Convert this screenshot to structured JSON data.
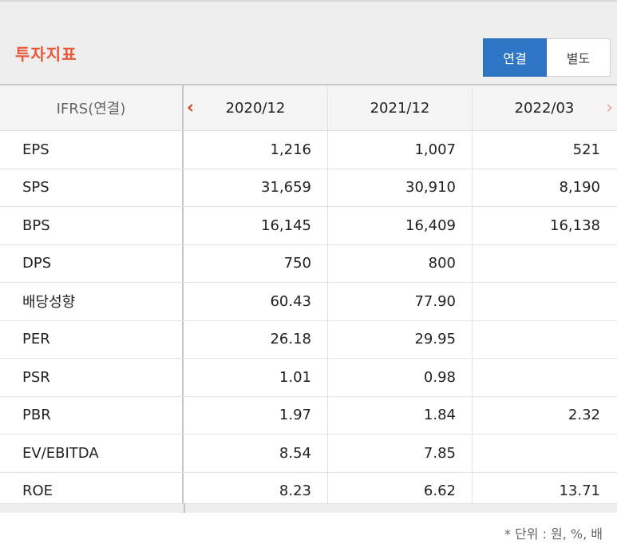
{
  "header": {
    "title": "투자지표",
    "toggle": [
      "연결",
      "별도"
    ]
  },
  "table": {
    "label_header": "IFRS(연결)",
    "periods": [
      "2020/12",
      "2021/12",
      "2022/03"
    ],
    "rows": [
      {
        "label": "EPS",
        "values": [
          "1,216",
          "1,007",
          "521"
        ]
      },
      {
        "label": "SPS",
        "values": [
          "31,659",
          "30,910",
          "8,190"
        ]
      },
      {
        "label": "BPS",
        "values": [
          "16,145",
          "16,409",
          "16,138"
        ]
      },
      {
        "label": "DPS",
        "values": [
          "750",
          "800",
          ""
        ]
      },
      {
        "label": "배당성향",
        "values": [
          "60.43",
          "77.90",
          ""
        ]
      },
      {
        "label": "PER",
        "values": [
          "26.18",
          "29.95",
          ""
        ]
      },
      {
        "label": "PSR",
        "values": [
          "1.01",
          "0.98",
          ""
        ]
      },
      {
        "label": "PBR",
        "values": [
          "1.97",
          "1.84",
          "2.32"
        ]
      },
      {
        "label": "EV/EBITDA",
        "values": [
          "8.54",
          "7.85",
          ""
        ]
      },
      {
        "label": "ROE",
        "values": [
          "8.23",
          "6.62",
          "13.71"
        ]
      }
    ]
  },
  "nav": {
    "prev": "‹",
    "next": "›"
  },
  "footer": {
    "unit_note": "* 단위 : 원, %, 배"
  }
}
